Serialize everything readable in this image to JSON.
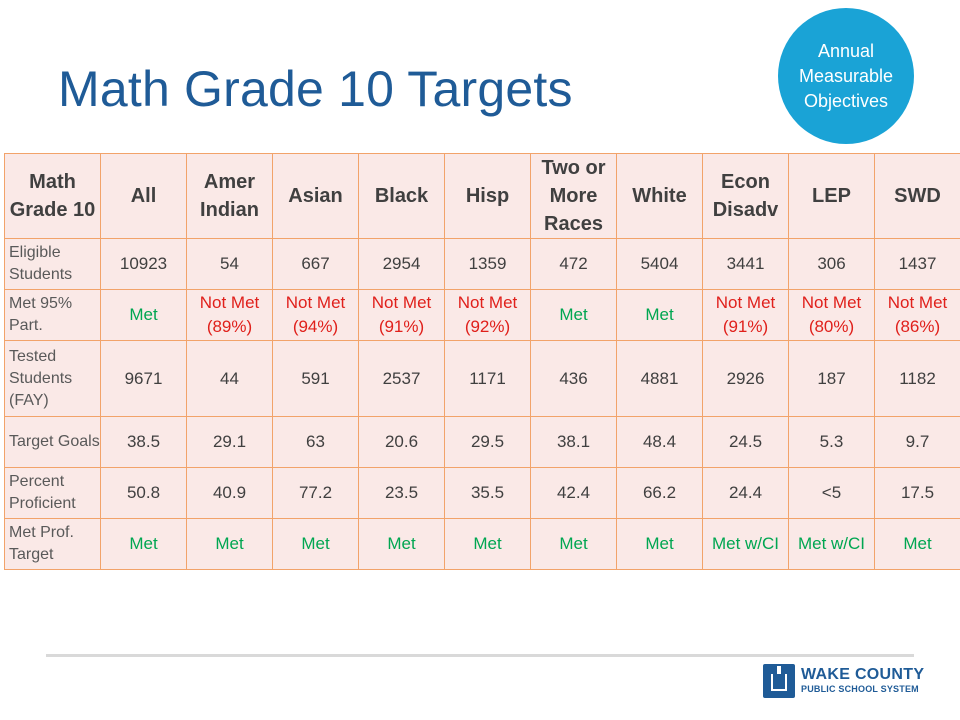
{
  "title": "Math Grade 10 Targets",
  "badge": {
    "line1": "Annual",
    "line2": "Measurable",
    "line3": "Objectives"
  },
  "colors": {
    "title": "#1f5b97",
    "badge": "#1aa3d6",
    "met": "#00a651",
    "not_met": "#e0201b",
    "border": "#f2a36a",
    "cell_bg": "#fae9e7"
  },
  "table": {
    "corner": "Math Grade 10",
    "headers": [
      "All",
      "Amer Indian",
      "Asian",
      "Black",
      "Hisp",
      "Two or More Races",
      "White",
      "Econ Disadv",
      "LEP",
      "SWD"
    ],
    "rows": [
      {
        "label": "Eligible Students",
        "values": [
          "10923",
          "54",
          "667",
          "2954",
          "1359",
          "472",
          "5404",
          "3441",
          "306",
          "1437"
        ]
      },
      {
        "label": "Met 95% Part.",
        "values": [
          "Met",
          "Not Met (89%)",
          "Not Met (94%)",
          "Not Met (91%)",
          "Not Met (92%)",
          "Met",
          "Met",
          "Not Met (91%)",
          "Not Met (80%)",
          "Not Met (86%)"
        ]
      },
      {
        "label": "Tested Students (FAY)",
        "values": [
          "9671",
          "44",
          "591",
          "2537",
          "1171",
          "436",
          "4881",
          "2926",
          "187",
          "1182"
        ]
      },
      {
        "label": "Target Goals",
        "values": [
          "38.5",
          "29.1",
          "63",
          "20.6",
          "29.5",
          "38.1",
          "48.4",
          "24.5",
          "5.3",
          "9.7"
        ]
      },
      {
        "label": "Percent Proficient",
        "values": [
          "50.8",
          "40.9",
          "77.2",
          "23.5",
          "35.5",
          "42.4",
          "66.2",
          "24.4",
          "<5",
          "17.5"
        ]
      },
      {
        "label": "Met Prof. Target",
        "values": [
          "Met",
          "Met",
          "Met",
          "Met",
          "Met",
          "Met",
          "Met",
          "Met w/CI",
          "Met w/CI",
          "Met"
        ]
      }
    ]
  },
  "logo": {
    "name": "WAKE COUNTY",
    "subtitle": "PUBLIC SCHOOL SYSTEM",
    "icon": "school-building-icon"
  }
}
